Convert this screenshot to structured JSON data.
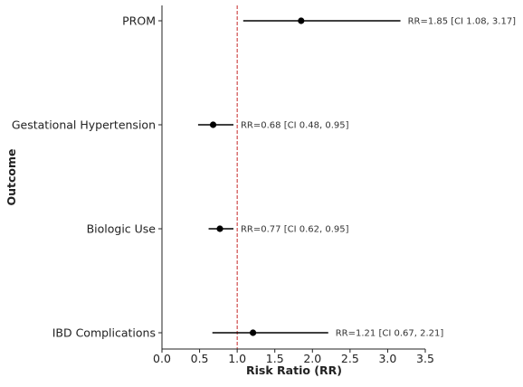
{
  "chart_data": {
    "type": "forest",
    "xlabel": "Risk Ratio (RR)",
    "ylabel": "Outcome",
    "xlim": [
      0.0,
      3.5
    ],
    "xticks": [
      "0.0",
      "0.5",
      "1.0",
      "1.5",
      "2.0",
      "2.5",
      "3.0",
      "3.5"
    ],
    "reference_line": {
      "x": 1.0,
      "color": "#c62828",
      "style": "dashed"
    },
    "point_color": "#000000",
    "rows": [
      {
        "outcome": "PROM",
        "rr": 1.85,
        "ci_low": 1.08,
        "ci_high": 3.17,
        "label": "RR=1.85 [CI 1.08, 3.17]"
      },
      {
        "outcome": "Gestational Hypertension",
        "rr": 0.68,
        "ci_low": 0.48,
        "ci_high": 0.95,
        "label": "RR=0.68 [CI 0.48, 0.95]"
      },
      {
        "outcome": "Biologic Use",
        "rr": 0.77,
        "ci_low": 0.62,
        "ci_high": 0.95,
        "label": "RR=0.77 [CI 0.62, 0.95]"
      },
      {
        "outcome": "IBD Complications",
        "rr": 1.21,
        "ci_low": 0.67,
        "ci_high": 2.21,
        "label": "RR=1.21 [CI 0.67, 2.21]"
      }
    ]
  }
}
